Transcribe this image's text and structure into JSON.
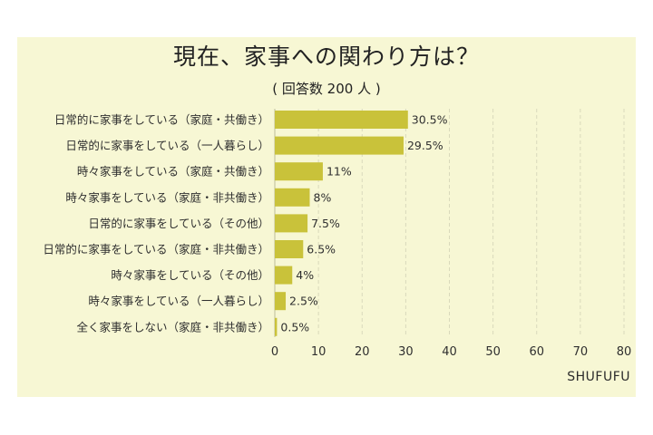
{
  "chart_data": {
    "type": "bar",
    "orientation": "horizontal",
    "title": "現在、家事への関わり方は？",
    "subtitle": "( 回答数 200 人 )",
    "categories": [
      "日常的に家事をしている（家庭・共働き）",
      "日常的に家事をしている（一人暮らし）",
      "時々家事をしている（家庭・共働き）",
      "時々家事をしている（家庭・非共働き）",
      "日常的に家事をしている（その他）",
      "日常的に家事をしている（家庭・非共働き）",
      "時々家事をしている（その他）",
      "時々家事をしている（一人暮らし）",
      "全く家事をしない（家庭・非共働き）"
    ],
    "values": [
      30.5,
      29.5,
      11,
      8,
      7.5,
      6.5,
      4,
      2.5,
      0.5
    ],
    "value_labels": [
      "30.5%",
      "29.5%",
      "11%",
      "8%",
      "7.5%",
      "6.5%",
      "4%",
      "2.5%",
      "0.5%"
    ],
    "xlim": [
      0,
      80
    ],
    "xticks": [
      0,
      10,
      20,
      30,
      40,
      50,
      60,
      70,
      80
    ],
    "xlabel": "",
    "ylabel": "",
    "grid": "vertical dashed",
    "legend": "none",
    "bar_color": "#c9c23a",
    "background_color": "#f7f7d4"
  },
  "source_brand": "SHUFUFU"
}
